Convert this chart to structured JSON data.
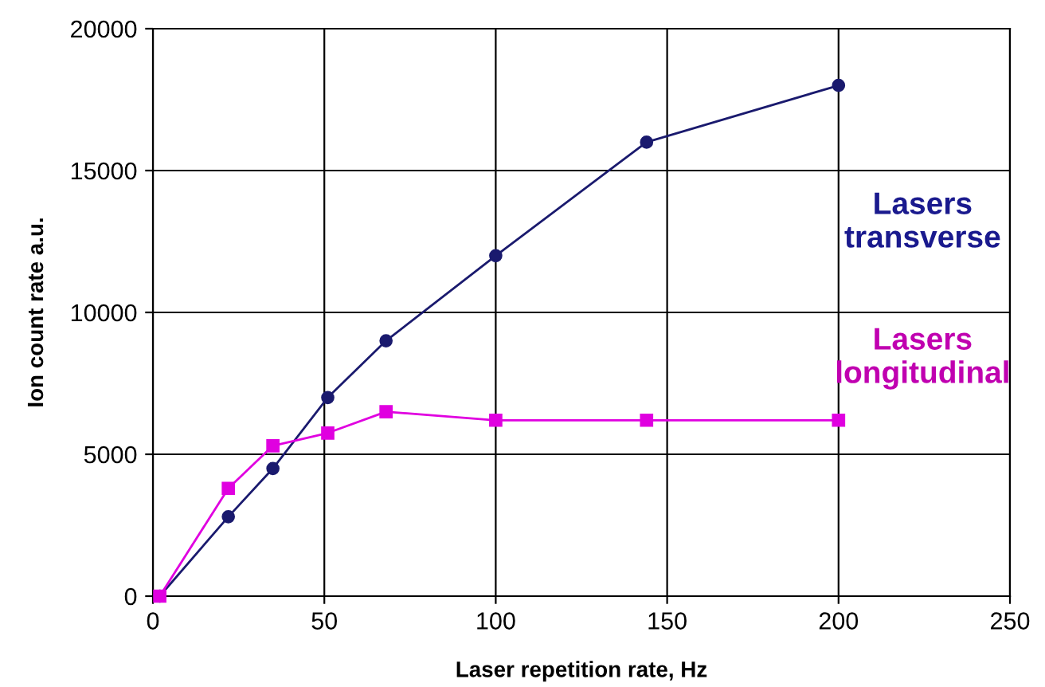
{
  "chart_data": {
    "type": "line",
    "xlabel": "Laser repetition rate, Hz",
    "ylabel": "Ion count rate a.u.",
    "series": [
      {
        "name": "Lasers\ntransverse",
        "color": "#1a1a6e",
        "marker": "circle",
        "x": [
          2,
          22,
          35,
          51,
          68,
          100,
          144,
          200
        ],
        "values": [
          0,
          2800,
          4500,
          7000,
          9000,
          12000,
          16000,
          18000
        ]
      },
      {
        "name": "Lasers\nlongitudinal",
        "color": "#e000e0",
        "marker": "square",
        "x": [
          2,
          22,
          35,
          51,
          68,
          100,
          144,
          200
        ],
        "values": [
          0,
          3800,
          5300,
          5750,
          6500,
          6200,
          6200,
          6200
        ]
      }
    ],
    "xlim": [
      0,
      250
    ],
    "xticks": [
      0,
      50,
      100,
      150,
      200,
      250
    ],
    "ylim": [
      0,
      20000
    ],
    "yticks": [
      0,
      5000,
      10000,
      15000,
      20000
    ],
    "grid": true,
    "legend": false
  }
}
